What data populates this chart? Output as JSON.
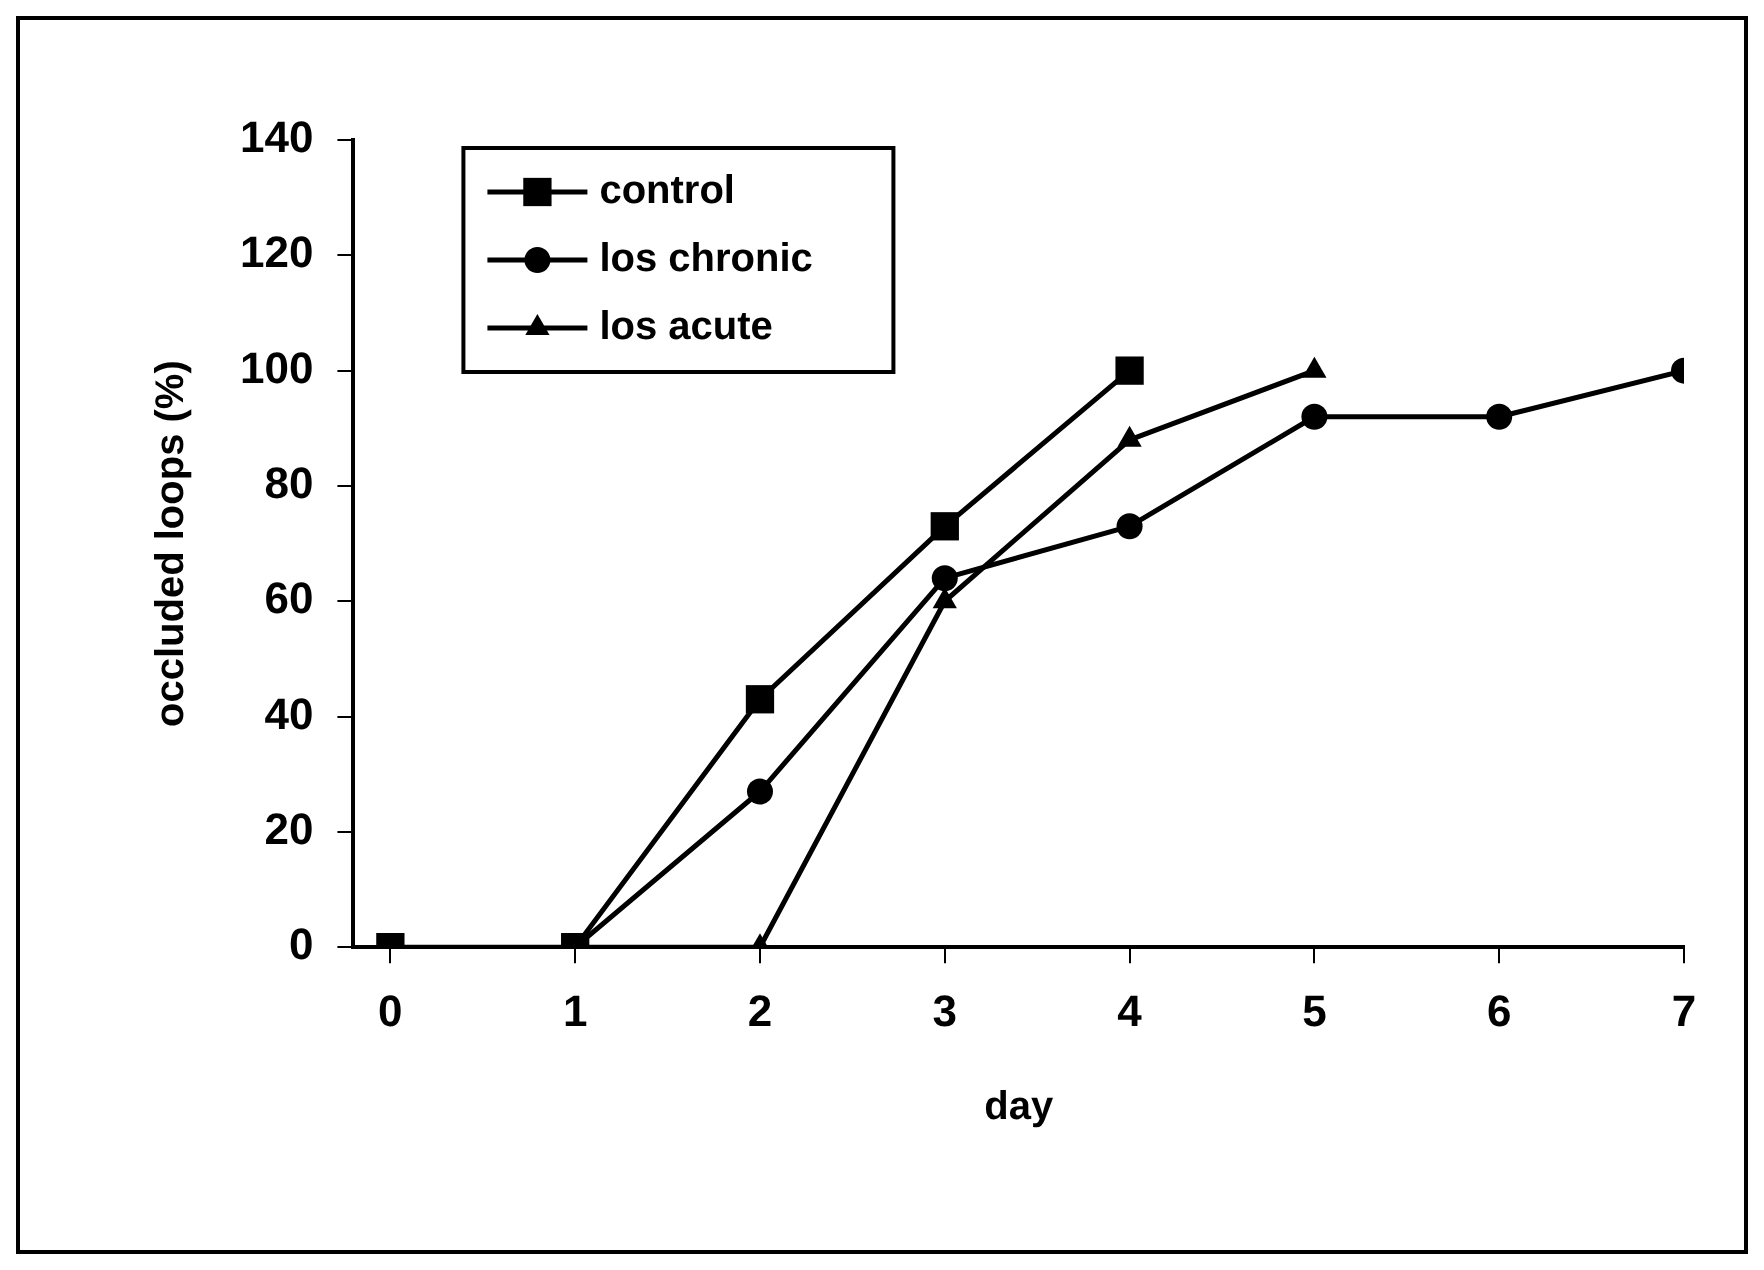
{
  "chart_data": {
    "type": "line",
    "xlabel": "day",
    "ylabel": "occluded loops (%)",
    "xlim": [
      -0.2,
      7
    ],
    "xticks": [
      0,
      1,
      2,
      3,
      4,
      5,
      6,
      7
    ],
    "ylim": [
      0,
      140
    ],
    "yticks": [
      0,
      20,
      40,
      60,
      80,
      100,
      120,
      140
    ],
    "grid": false,
    "legend": "top left",
    "line_style": "solid",
    "series": [
      {
        "name": "control",
        "color": "#000000",
        "marker": "square",
        "x": [
          0,
          1,
          2,
          3,
          4
        ],
        "values": [
          0,
          0,
          43,
          73,
          100
        ]
      },
      {
        "name": "los chronic",
        "color": "#000000",
        "marker": "circle",
        "x": [
          1,
          2,
          3,
          4,
          5,
          6,
          7
        ],
        "values": [
          0,
          27,
          64,
          73,
          92,
          92,
          100
        ]
      },
      {
        "name": "los acute",
        "color": "#000000",
        "marker": "triangle",
        "x": [
          1,
          2,
          3,
          4,
          5
        ],
        "values": [
          0,
          0,
          60,
          88,
          100
        ]
      }
    ]
  }
}
